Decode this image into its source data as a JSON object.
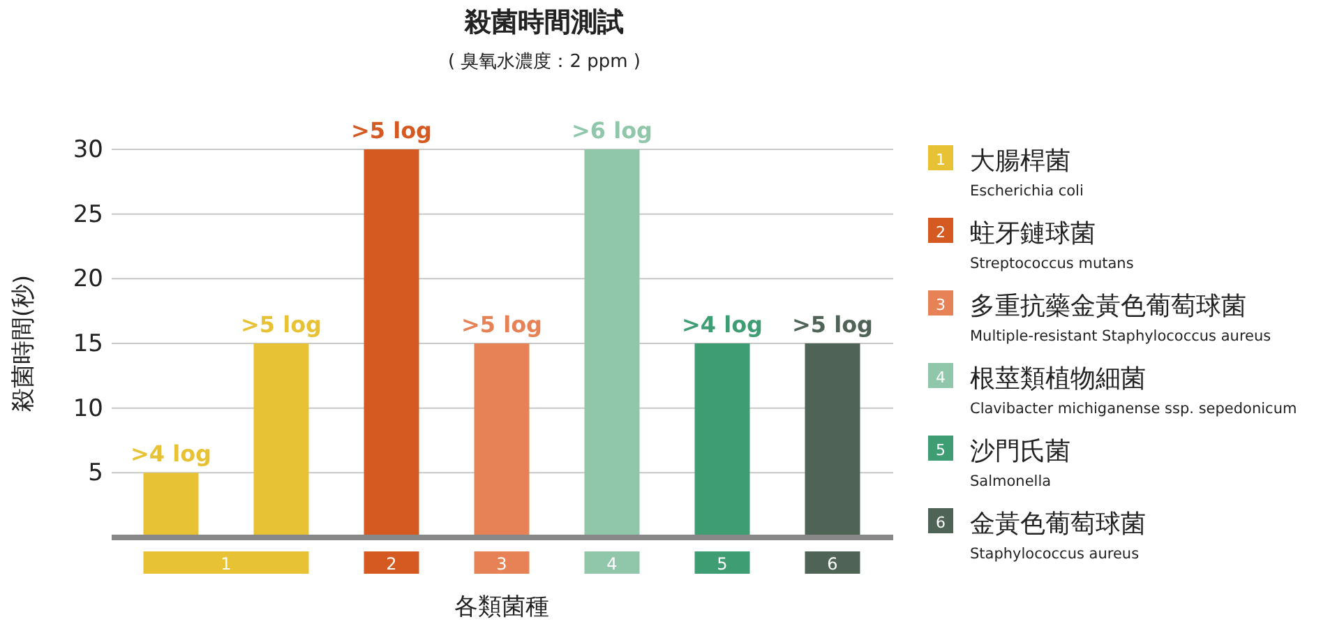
{
  "chart_data": {
    "type": "bar",
    "title": "殺菌時間測試",
    "subtitle": "( 臭氧水濃度：2 ppm )",
    "xlabel": "各類菌種",
    "ylabel": "殺菌時間(秒)",
    "categories": [
      "1",
      null,
      "2",
      "3",
      "4",
      "5",
      "6"
    ],
    "series": [
      {
        "name": "大腸桿菌\nEscherichia coli",
        "color": "#e8c235",
        "values": [
          5,
          15,
          null,
          null,
          null,
          null,
          null
        ],
        "value_labels": [
          ">4 log",
          ">5 log",
          null,
          null,
          null,
          null,
          null
        ]
      },
      {
        "name": "蛀牙鏈球菌\nStreptococcus mutans",
        "color": "#d55a22",
        "values": [
          null,
          null,
          30,
          null,
          null,
          null,
          null
        ],
        "value_labels": [
          null,
          null,
          ">5 log",
          null,
          null,
          null,
          null
        ]
      },
      {
        "name": "多重抗藥金黃色葡萄球菌\nMultiple-resistant Staphylococcus aureus",
        "color": "#e78156",
        "values": [
          null,
          null,
          null,
          15,
          null,
          null,
          null
        ],
        "value_labels": [
          null,
          null,
          null,
          ">5 log",
          null,
          null,
          null
        ]
      },
      {
        "name": "根莖類植物細菌\nClavibacter michiganense ssp. sepedonicum",
        "color": "#90c7aa",
        "values": [
          null,
          null,
          null,
          null,
          30,
          null,
          null
        ],
        "value_labels": [
          null,
          null,
          null,
          null,
          ">6 log",
          null,
          null
        ]
      },
      {
        "name": "沙門氏菌\nSalmonella",
        "color": "#3f9d74",
        "values": [
          null,
          null,
          null,
          null,
          null,
          15,
          null
        ],
        "value_labels": [
          null,
          null,
          null,
          null,
          null,
          ">4 log",
          null
        ]
      },
      {
        "name": "金黃色葡萄球菌\nStaphylococcus aureus",
        "color": "#4f6356",
        "values": [
          null,
          null,
          null,
          null,
          null,
          null,
          15
        ],
        "value_labels": [
          null,
          null,
          null,
          null,
          null,
          null,
          ">5 log"
        ]
      }
    ],
    "ylim": [
      0,
      30
    ],
    "yticks": [
      5,
      10,
      15,
      20,
      25,
      30
    ],
    "grid": "y",
    "legend": "right"
  }
}
